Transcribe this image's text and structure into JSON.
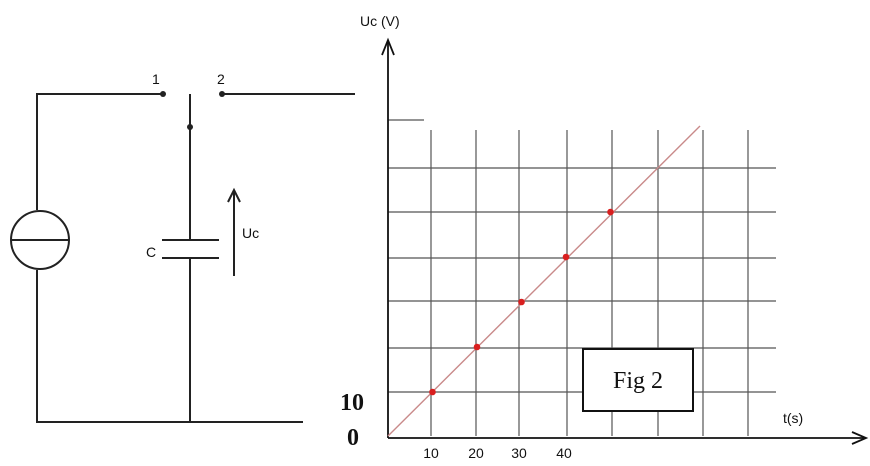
{
  "circuit": {
    "switch_positions": [
      "1",
      "2"
    ],
    "capacitor_label": "C",
    "voltage_label": "Uc"
  },
  "graph": {
    "y_axis_label": "Uc (V)",
    "x_axis_label": "t(s)",
    "origin_label": "0",
    "y_tick_label": "10",
    "x_tick_labels": [
      "10",
      "20",
      "30",
      "40"
    ],
    "figure_label": "Fig 2"
  },
  "chart_data": {
    "type": "scatter",
    "x": [
      10,
      20,
      30,
      40,
      50
    ],
    "y": [
      10,
      20,
      30,
      40,
      50
    ],
    "line": "through origin",
    "xlabel": "t(s)",
    "ylabel": "Uc (V)",
    "colors": {
      "points": "#d91f1f",
      "line": "#c98a8a",
      "grid": "#555555"
    }
  }
}
